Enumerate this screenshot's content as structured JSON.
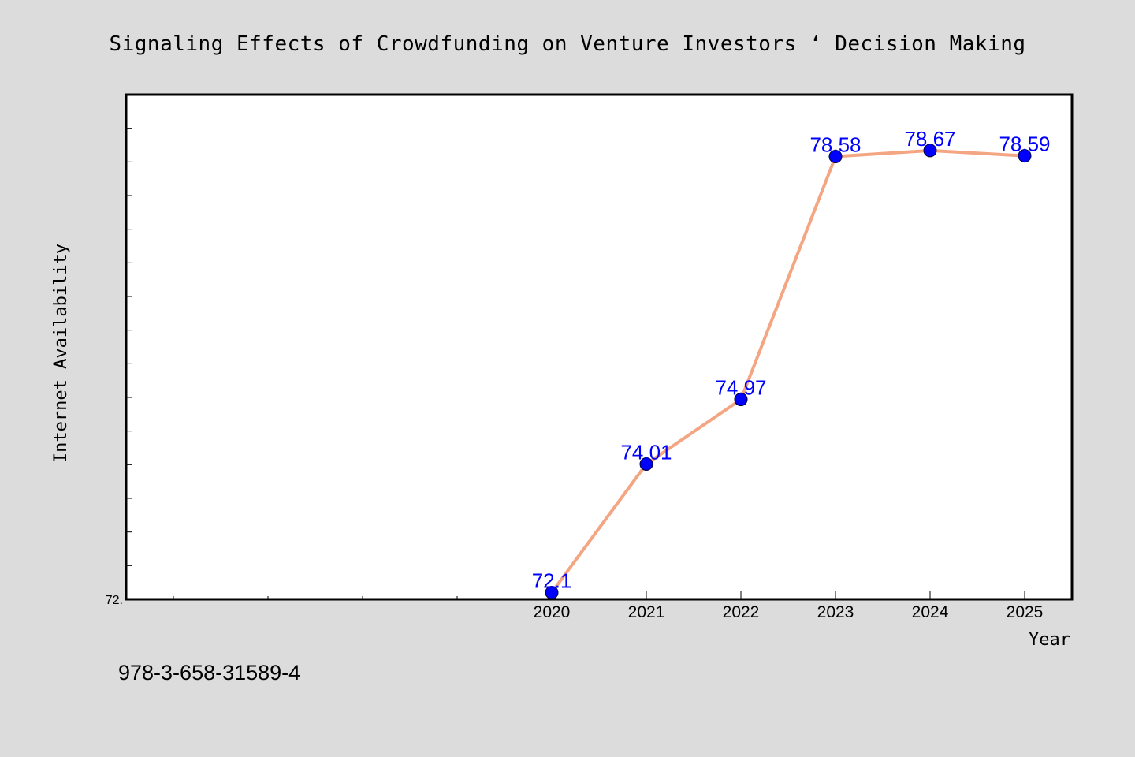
{
  "title": "Signaling Effects of Crowdfunding on Venture Investors ‘ Decision Making",
  "footer": "978-3-658-31589-4",
  "colors": {
    "background": "#dcdcdc",
    "plot_background": "#ffffff",
    "line": "#f4a582",
    "marker": "#0000ff",
    "data_label": "#0000ff"
  },
  "chart_data": {
    "type": "line",
    "title": "Signaling Effects of Crowdfunding on Venture Investors ‘ Decision Making",
    "xlabel": "Year",
    "ylabel": "Internet Availability",
    "x": [
      "2020",
      "2021",
      "2022",
      "2023",
      "2024",
      "2025"
    ],
    "xlim": [
      "2015.5",
      "2025.5"
    ],
    "y_tick_labels": [
      "72."
    ],
    "ylim": [
      72.0,
      79.5
    ],
    "series": [
      {
        "values": [
          72.1,
          74.01,
          74.97,
          78.58,
          78.67,
          78.59
        ],
        "labels": [
          "72.1",
          "74.01",
          "74.97",
          "78.58",
          "78.67",
          "78.59"
        ]
      }
    ],
    "grid": false,
    "legend": "none"
  }
}
